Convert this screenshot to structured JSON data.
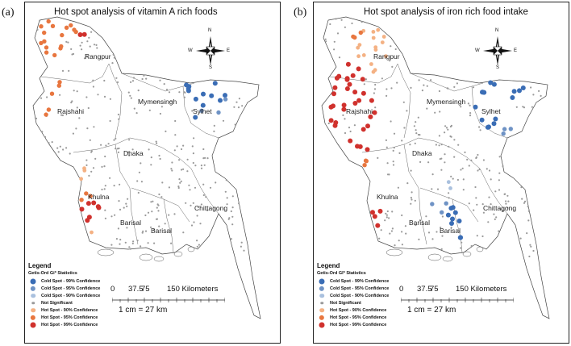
{
  "panels": [
    {
      "id": "a",
      "label": "(a)",
      "title": "Hot spot analysis of vitamin A rich foods",
      "divisions": [
        "Rangpur",
        "Rajshahi",
        "Mymensingh",
        "Sylhet",
        "Dhaka",
        "Khulna",
        "Barisal",
        "Barisal",
        "Chittagong"
      ],
      "legend": {
        "title": "Legend",
        "subtitle": "Getis-Ord Gi* Statistics",
        "items": [
          {
            "label": "Cold Spot - 99% Confidence",
            "color": "#3a6db5",
            "size": 5
          },
          {
            "label": "Cold Spot - 95% Confidence",
            "color": "#6f93c5",
            "size": 4.5
          },
          {
            "label": "Cold Spot - 90% Confidence",
            "color": "#a9c0de",
            "size": 4
          },
          {
            "label": "Not Significant",
            "color": "#9a9a9a",
            "size": 2.5
          },
          {
            "label": "Hot Spot - 90% Confidence",
            "color": "#f4b183",
            "size": 4
          },
          {
            "label": "Hot Spot - 95% Confidence",
            "color": "#e8763f",
            "size": 4.5
          },
          {
            "label": "Hot Spot - 99% Confidence",
            "color": "#d0312d",
            "size": 5
          }
        ]
      },
      "scale": {
        "ticks": [
          "0",
          "37.5",
          "75",
          "150 Kilometers"
        ],
        "ratio": "1 cm = 27 km"
      },
      "compass": {
        "n": "N",
        "s": "S",
        "e": "E",
        "w": "W"
      }
    },
    {
      "id": "b",
      "label": "(b)",
      "title": "Hot spot analysis of iron rich food intake",
      "divisions": [
        "Rangpur",
        "Rajshahi",
        "Mymensingh",
        "Sylhet",
        "Dhaka",
        "Khulna",
        "Barisal",
        "Barisal",
        "Chittagong"
      ],
      "legend": {
        "title": "Legend",
        "subtitle": "Getis-Ord GI* Statistics",
        "items": [
          {
            "label": "Cold Spot - 99% Confidence",
            "color": "#3a6db5",
            "size": 5
          },
          {
            "label": "Cold Spot - 95% Confidence",
            "color": "#6f93c5",
            "size": 4.5
          },
          {
            "label": "Cold Spot - 90% Confidence",
            "color": "#a9c0de",
            "size": 4
          },
          {
            "label": "Not Significant",
            "color": "#9a9a9a",
            "size": 2.5
          },
          {
            "label": "Hot Spot - 90% Confidence",
            "color": "#f4b183",
            "size": 4
          },
          {
            "label": "Hot Spot - 95% Confidence",
            "color": "#e8763f",
            "size": 4.5
          },
          {
            "label": "Hot Spot - 99% Confidence",
            "color": "#d0312d",
            "size": 5
          }
        ]
      },
      "scale": {
        "ticks": [
          "0",
          "37.5",
          "75",
          "150 Kilometers"
        ],
        "ratio": "1 cm = 27 km"
      },
      "compass": {
        "n": "N",
        "s": "S",
        "e": "E",
        "w": "W"
      }
    }
  ]
}
